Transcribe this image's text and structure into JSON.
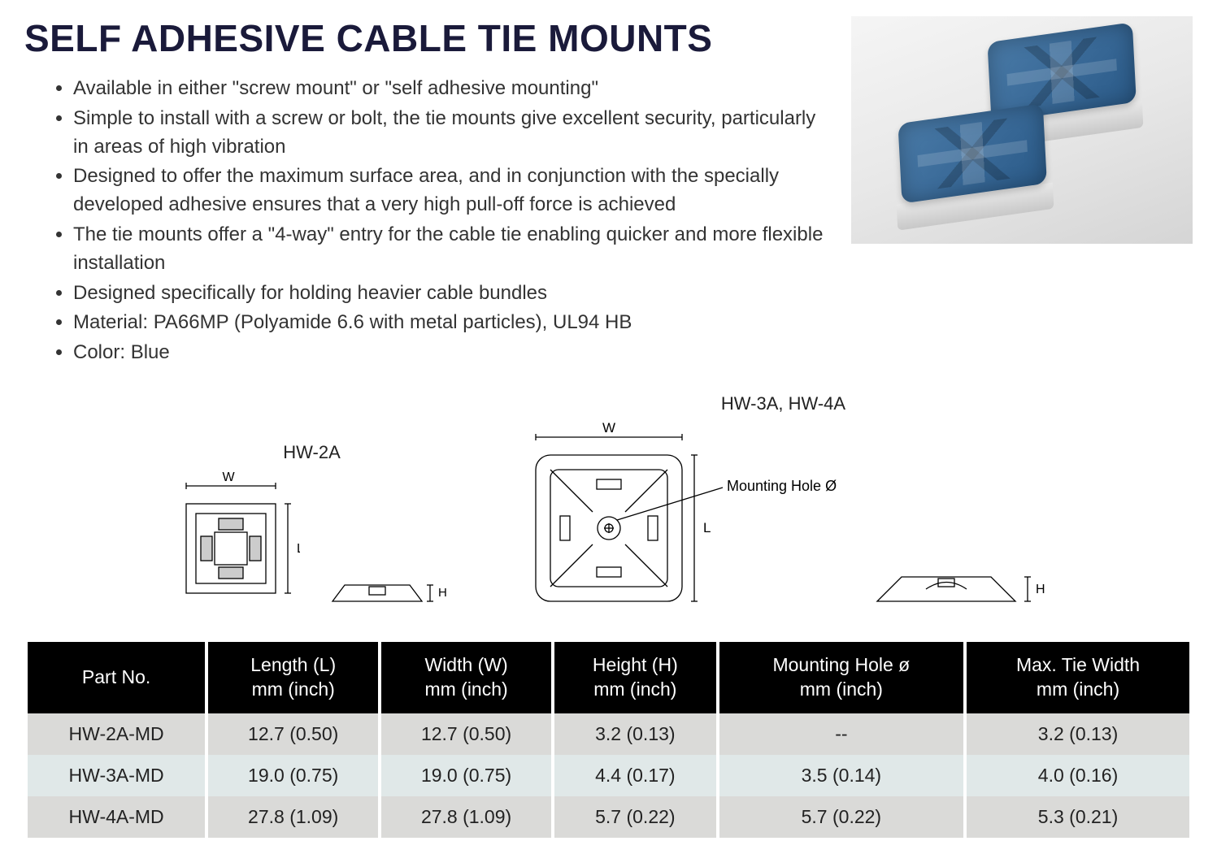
{
  "title": "SELF ADHESIVE CABLE TIE MOUNTS",
  "bullets": [
    "Available in either \"screw mount\" or \"self adhesive mounting\"",
    "Simple to install with a screw or bolt, the tie mounts give excellent security, particularly in areas of high vibration",
    "Designed to offer the maximum surface area, and in conjunction with the specially developed adhesive ensures that a very high pull-off force is achieved",
    "The tie mounts offer a \"4-way\" entry for the cable tie enabling quicker and more flexible installation",
    "Designed specifically for holding heavier cable bundles",
    "Material: PA66MP (Polyamide 6.6 with metal particles), UL94 HB",
    "Color: Blue"
  ],
  "diagrams": {
    "left_title": "HW-2A",
    "right_title": "HW-3A, HW-4A",
    "label_W": "W",
    "label_L": "L",
    "label_H": "H",
    "label_hole": "Mounting Hole Ø"
  },
  "table": {
    "columns": [
      "Part No.",
      "Length (L)\nmm (inch)",
      "Width (W)\nmm (inch)",
      "Height (H)\nmm (inch)",
      "Mounting Hole ø\nmm (inch)",
      "Max. Tie Width\nmm (inch)"
    ],
    "rows": [
      [
        "HW-2A-MD",
        "12.7 (0.50)",
        "12.7 (0.50)",
        "3.2 (0.13)",
        "--",
        "3.2 (0.13)"
      ],
      [
        "HW-3A-MD",
        "19.0 (0.75)",
        "19.0 (0.75)",
        "4.4 (0.17)",
        "3.5 (0.14)",
        "4.0 (0.16)"
      ],
      [
        "HW-4A-MD",
        "27.8 (1.09)",
        "27.8 (1.09)",
        "5.7 (0.22)",
        "5.7 (0.22)",
        "5.3 (0.21)"
      ]
    ],
    "header_bg": "#000000",
    "header_fg": "#ffffff",
    "row_odd_bg": "#dadad8",
    "row_even_bg": "#e0e8e8",
    "col_widths_pct": [
      16,
      16,
      16,
      16,
      18,
      18
    ]
  },
  "photo": {
    "product_color": "#3a6a98",
    "background_gradient": [
      "#f5f5f5",
      "#d5d5d5"
    ]
  }
}
